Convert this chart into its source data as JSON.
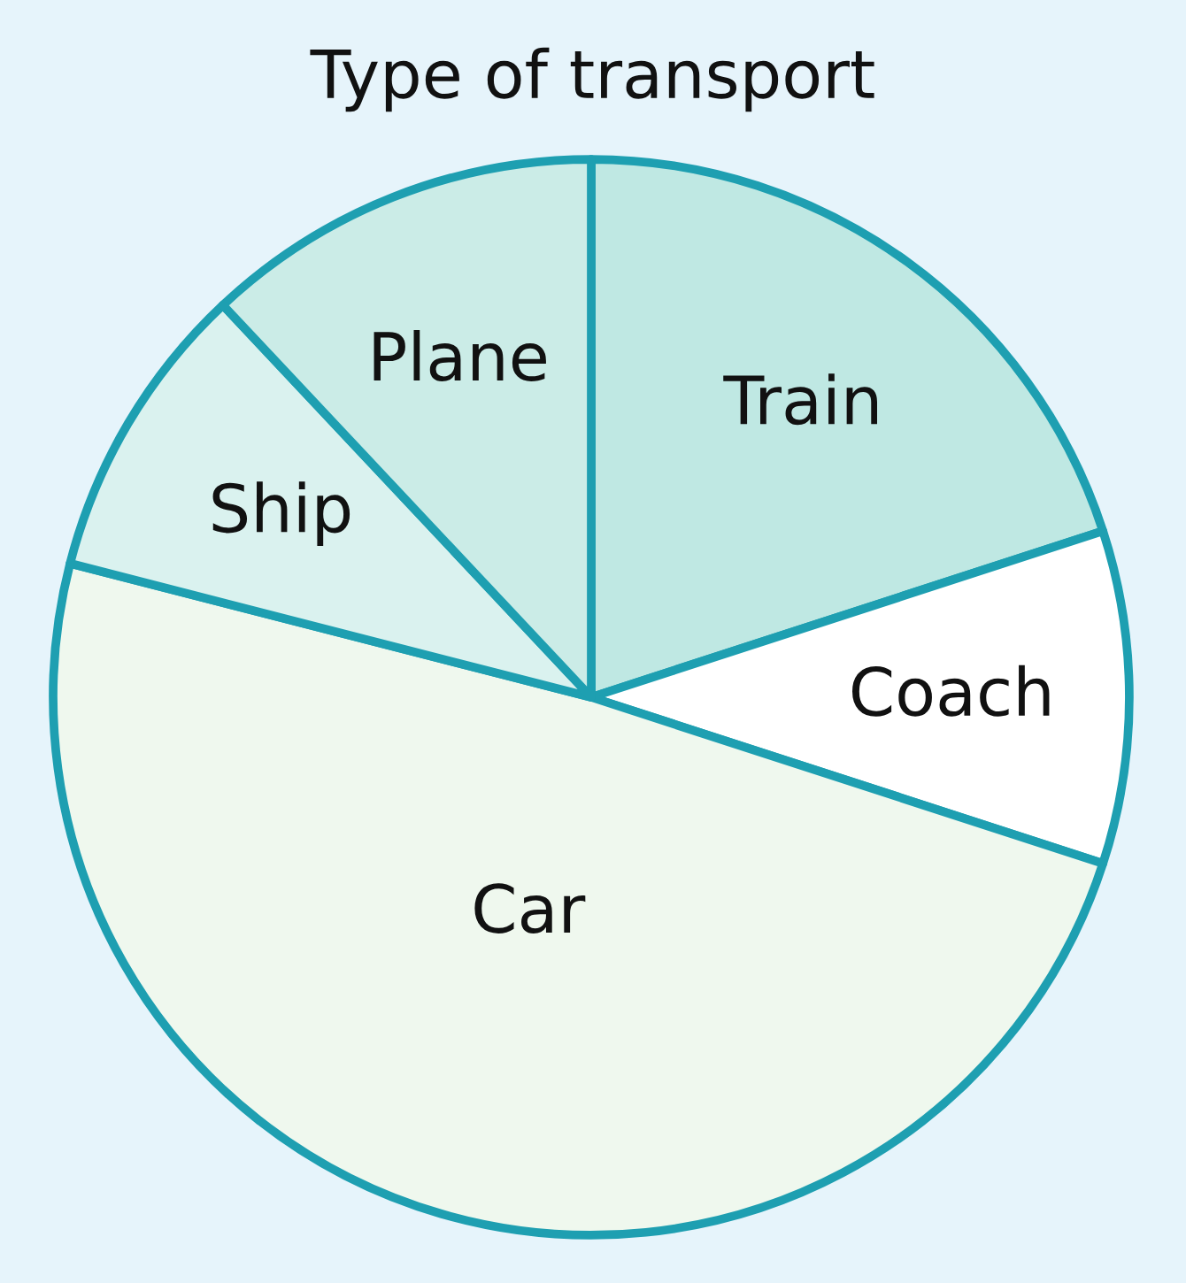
{
  "chart_data": {
    "type": "pie",
    "title": "Type of transport",
    "categories": [
      "Train",
      "Coach",
      "Car",
      "Ship",
      "Plane"
    ],
    "values": [
      20,
      10,
      49,
      9,
      12
    ],
    "colors": [
      "#bfe8e3",
      "#ffffff",
      "#eff8ee",
      "#daf2ef",
      "#cbece7"
    ]
  }
}
